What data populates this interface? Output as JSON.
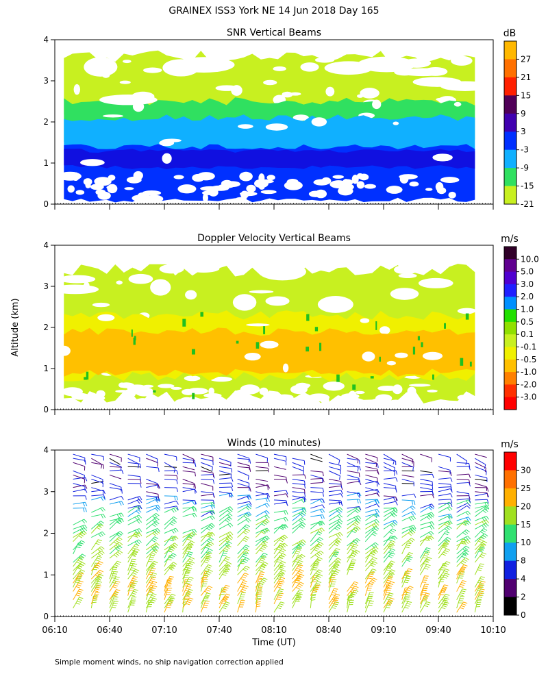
{
  "title": "GRAINEX ISS3 York NE  14 Jun 2018 Day 165",
  "footnote": "Simple moment winds, no ship navigation correction applied",
  "y_axis_label": "Altitude (km)",
  "x_axis_label": "Time (UT)",
  "time_ticks": [
    "06:10",
    "06:40",
    "07:10",
    "07:40",
    "08:10",
    "08:40",
    "09:10",
    "09:40",
    "10:10"
  ],
  "altitude_ticks": [
    "0",
    "1",
    "2",
    "3",
    "4"
  ],
  "chart_data": [
    {
      "type": "heatmap",
      "title": "SNR Vertical Beams",
      "units": "dB",
      "xlim": [
        "06:10",
        "10:10"
      ],
      "ylim": [
        0,
        4
      ],
      "colorbar": {
        "labels": [
          "27",
          "21",
          "15",
          "9",
          "3",
          "-3",
          "-9",
          "-15",
          "-21"
        ],
        "colors": [
          "#ffb800",
          "#ff7000",
          "#ff2000",
          "#500058",
          "#4000b0",
          "#0030ff",
          "#10b0ff",
          "#30e060",
          "#c8f020"
        ]
      },
      "layers": [
        {
          "name": "-21 to -15 dB",
          "color": "#c8f020",
          "alt_range": [
            2.3,
            3.6
          ]
        },
        {
          "name": "-15 to -9 dB",
          "color": "#30e060",
          "alt_range": [
            1.6,
            2.5
          ]
        },
        {
          "name": "-9 to -3 dB",
          "color": "#10b0ff",
          "alt_range": [
            1.1,
            2.1
          ]
        },
        {
          "name": "-3 to 3 dB",
          "color": "#0030ff",
          "alt_range": [
            0.1,
            1.4
          ]
        }
      ]
    },
    {
      "type": "heatmap",
      "title": "Doppler Velocity Vertical Beams",
      "units": "m/s",
      "xlim": [
        "06:10",
        "10:10"
      ],
      "ylim": [
        0,
        4
      ],
      "colorbar": {
        "labels": [
          "10.0",
          "5.0",
          "3.0",
          "2.0",
          "1.0",
          "0.5",
          "0.1",
          "-0.1",
          "-0.5",
          "-1.0",
          "-2.0",
          "-3.0"
        ],
        "colors": [
          "#300028",
          "#600090",
          "#5000d0",
          "#2020ff",
          "#0090ff",
          "#20e000",
          "#90e000",
          "#c8f020",
          "#f0f000",
          "#ffc000",
          "#ff8000",
          "#ff3000",
          "#ff0000"
        ]
      },
      "layers": [
        {
          "name": "-0.1 to 0.1 m/s",
          "color": "#c8f020",
          "alt_range": [
            0.3,
            3.4
          ]
        },
        {
          "name": "-0.5 to -0.1 m/s",
          "color": "#f0f000",
          "alt_range": [
            0.8,
            2.3
          ]
        },
        {
          "name": "-1.0 to -0.5 m/s",
          "color": "#ffc000",
          "alt_range": [
            0.9,
            1.9
          ]
        }
      ]
    },
    {
      "type": "wind_barbs",
      "title": "Winds (10 minutes)",
      "units": "m/s",
      "xlim": [
        "06:10",
        "10:10"
      ],
      "ylim": [
        0,
        4
      ],
      "interval_minutes": 10,
      "colorbar": {
        "labels": [
          "30",
          "25",
          "20",
          "15",
          "10",
          "8",
          "4",
          "2",
          "0"
        ],
        "colors": [
          "#ff0000",
          "#ff7000",
          "#ffb000",
          "#a0e020",
          "#30e070",
          "#10a0f0",
          "#1020e0",
          "#500070",
          "#000000"
        ]
      },
      "profile": [
        {
          "alt_km": 0.2,
          "speed_ms": 18,
          "dir_deg": 200
        },
        {
          "alt_km": 0.5,
          "speed_ms": 22,
          "dir_deg": 205
        },
        {
          "alt_km": 1.0,
          "speed_ms": 18,
          "dir_deg": 210
        },
        {
          "alt_km": 1.5,
          "speed_ms": 16,
          "dir_deg": 220
        },
        {
          "alt_km": 2.0,
          "speed_ms": 14,
          "dir_deg": 235
        },
        {
          "alt_km": 2.5,
          "speed_ms": 10,
          "dir_deg": 250
        },
        {
          "alt_km": 3.0,
          "speed_ms": 5,
          "dir_deg": 270
        },
        {
          "alt_km": 3.5,
          "speed_ms": 4,
          "dir_deg": 280
        },
        {
          "alt_km": 3.9,
          "speed_ms": 4,
          "dir_deg": 290
        }
      ]
    }
  ]
}
